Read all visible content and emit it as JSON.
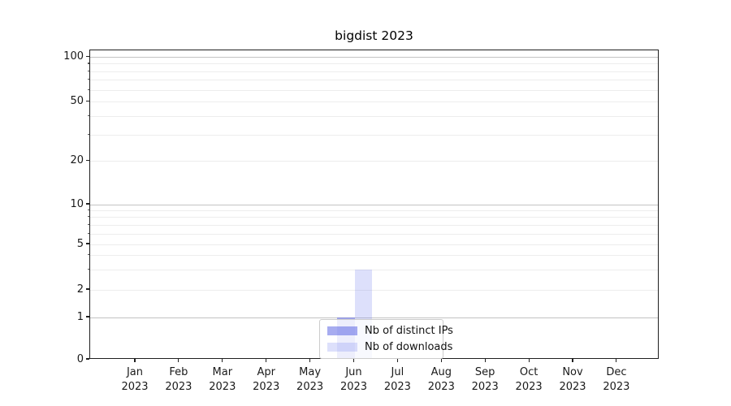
{
  "chart_data": {
    "type": "bar",
    "title": "bigdist 2023",
    "year_label": "2023",
    "categories": [
      "Jan",
      "Feb",
      "Mar",
      "Apr",
      "May",
      "Jun",
      "Jul",
      "Aug",
      "Sep",
      "Oct",
      "Nov",
      "Dec"
    ],
    "series": [
      {
        "name": "Nb of distinct IPs",
        "color": "rgba(80,90,225,0.5)",
        "values": [
          0,
          0,
          0,
          0,
          0,
          1,
          0,
          0,
          0,
          0,
          0,
          0
        ]
      },
      {
        "name": "Nb of downloads",
        "color": "rgba(120,130,240,0.25)",
        "values": [
          0,
          0,
          0,
          0,
          0,
          3,
          0,
          0,
          0,
          0,
          0,
          0
        ]
      }
    ],
    "yaxis": {
      "scale": "symlog",
      "range": [
        0,
        100
      ],
      "ticks": [
        0,
        1,
        2,
        5,
        10,
        20,
        50,
        100
      ],
      "minor_ticks": [
        3,
        4,
        6,
        7,
        8,
        9,
        30,
        40,
        60,
        70,
        80,
        90
      ],
      "power_gridlines": [
        1,
        10,
        100
      ]
    },
    "grid": {
      "show": true,
      "major_color": "#c3c3c3",
      "minor_color": "#ededed"
    },
    "legend": {
      "position": "lower center"
    }
  }
}
